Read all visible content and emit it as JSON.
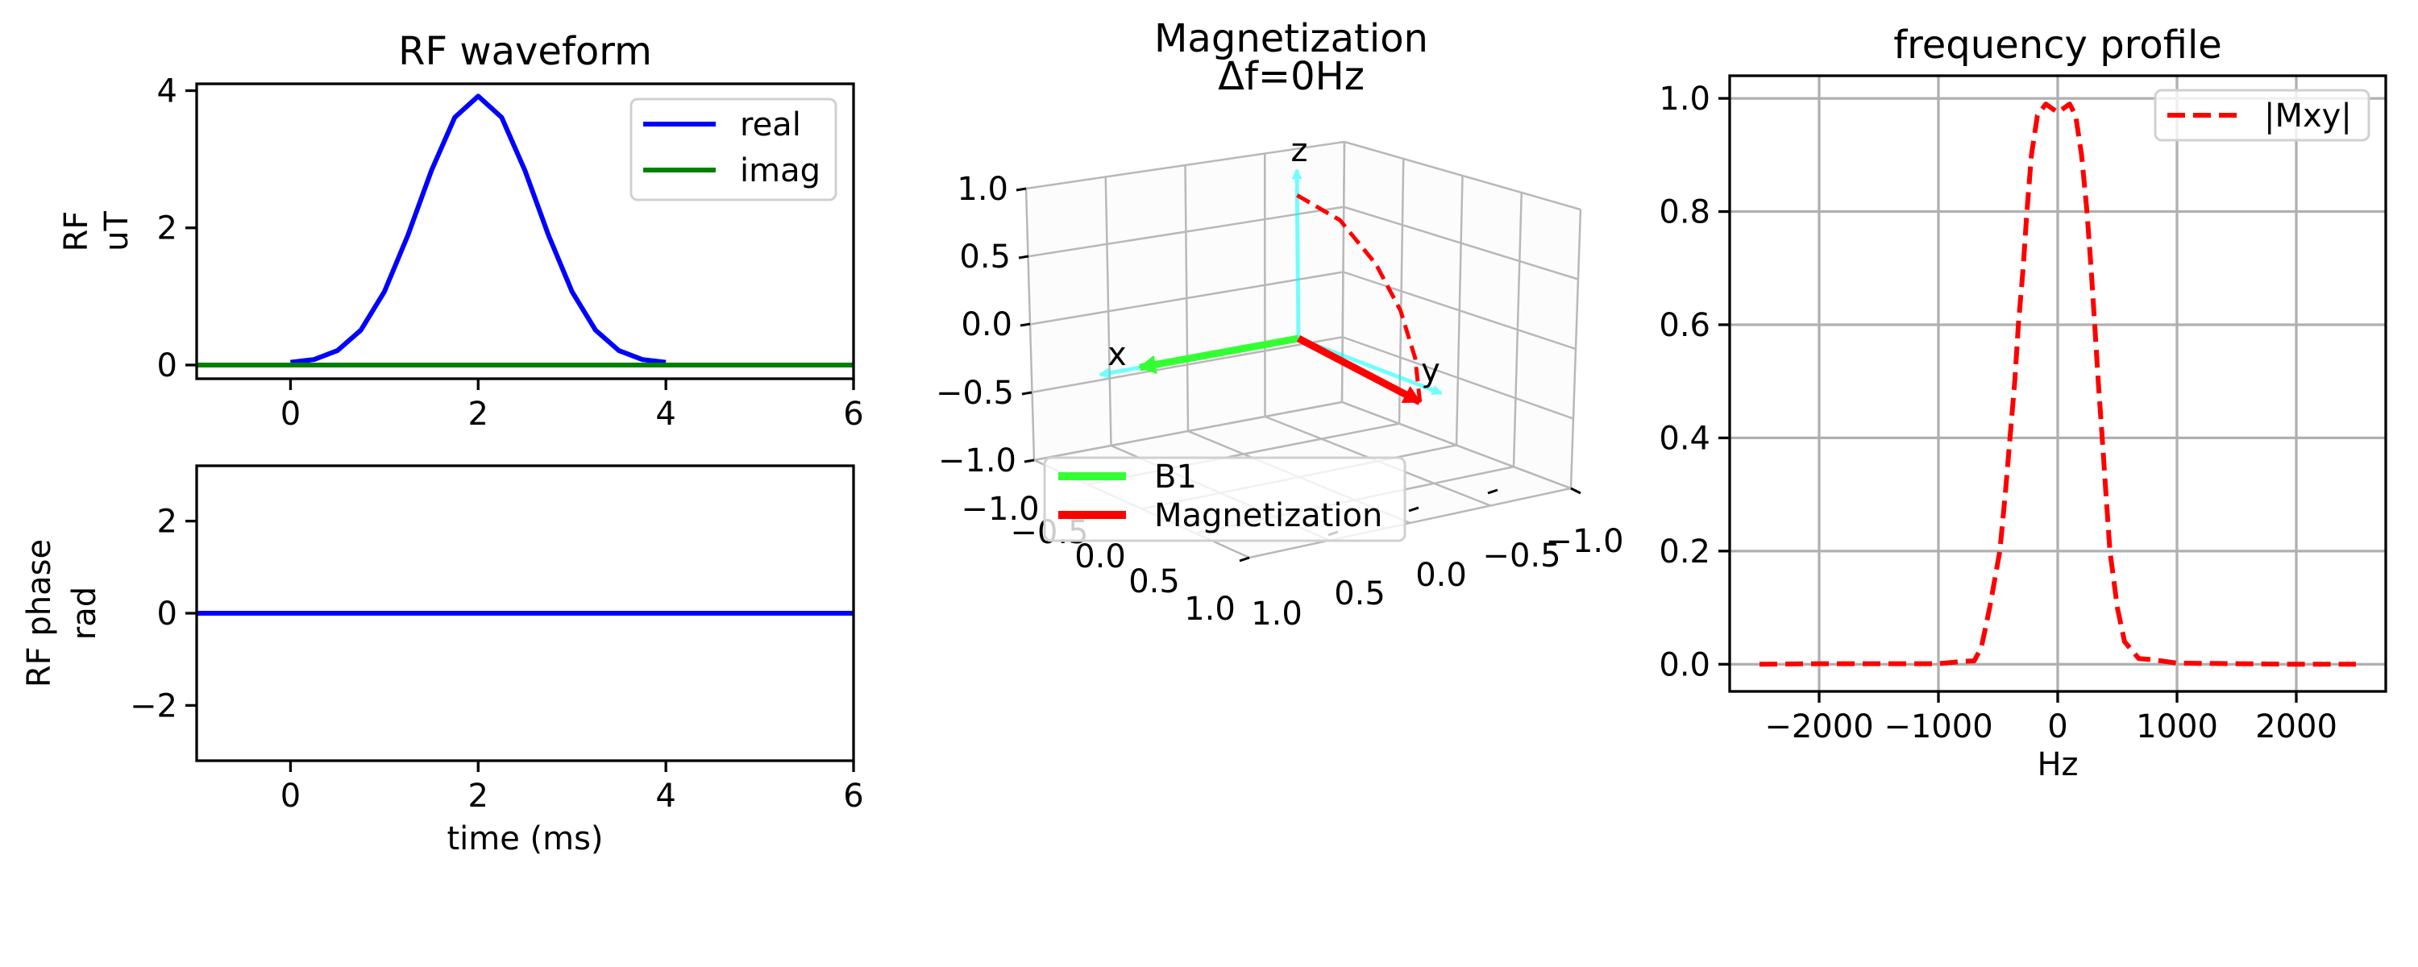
{
  "chart_data": [
    {
      "type": "line",
      "title": "RF waveform",
      "ylabel": [
        "RF",
        "uT"
      ],
      "xlabel": "",
      "xlim": [
        -1,
        6
      ],
      "ylim": [
        -0.2,
        4.1
      ],
      "xticks": {
        "values": [
          0,
          2,
          4,
          6
        ],
        "labels": [
          "0",
          "2",
          "4",
          "6"
        ]
      },
      "yticks": {
        "values": [
          0,
          2,
          4
        ],
        "labels": [
          "0",
          "2",
          "4"
        ]
      },
      "grid": false,
      "legend": "upper right",
      "series": [
        {
          "name": "real",
          "color": "#0000ff",
          "x": [
            0,
            0.25,
            0.5,
            0.75,
            1.0,
            1.25,
            1.5,
            1.75,
            2.0,
            2.25,
            2.5,
            2.75,
            3.0,
            3.25,
            3.5,
            3.75,
            4.0
          ],
          "y": [
            0.04,
            0.08,
            0.21,
            0.51,
            1.07,
            1.89,
            2.83,
            3.61,
            3.92,
            3.61,
            2.83,
            1.89,
            1.07,
            0.51,
            0.21,
            0.08,
            0.04
          ]
        },
        {
          "name": "imag",
          "color": "#008000",
          "x": [
            -1,
            6
          ],
          "y": [
            0,
            0
          ]
        }
      ]
    },
    {
      "type": "line",
      "title": "",
      "ylabel": [
        "RF phase",
        "rad"
      ],
      "xlabel": "time (ms)",
      "xlim": [
        -1,
        6
      ],
      "ylim": [
        -3.2,
        3.2
      ],
      "xticks": {
        "values": [
          0,
          2,
          4,
          6
        ],
        "labels": [
          "0",
          "2",
          "4",
          "6"
        ]
      },
      "yticks": {
        "values": [
          -2,
          0,
          2
        ],
        "labels": [
          "−2",
          "0",
          "2"
        ]
      },
      "grid": false,
      "series": [
        {
          "color": "#0000ff",
          "x": [
            -1,
            6
          ],
          "y": [
            0,
            0
          ]
        }
      ]
    },
    {
      "type": "3d-quiver",
      "title": [
        "Magnetization",
        "Δf=0Hz"
      ],
      "axis_names": {
        "x": "x",
        "y": "y",
        "z": "z"
      },
      "zticks": [
        "1.0",
        "0.5",
        "0.0",
        "−0.5",
        "−1.0"
      ],
      "xticks": [
        "−1.0",
        "−0.5",
        "0.0",
        "0.5",
        "1.0"
      ],
      "yticks": [
        "1.0",
        "0.5",
        "0.0",
        "−0.5",
        "−1.0"
      ],
      "axis_color": "#00ffff",
      "legend": "lower left",
      "vectors": [
        {
          "name": "B1",
          "color": "#33ff33",
          "end": [
            0.8,
            0,
            0
          ]
        },
        {
          "name": "Magnetization",
          "color": "#ff0000",
          "end": [
            0,
            0.85,
            -0.1
          ]
        }
      ],
      "trajectory": {
        "color": "#ff0000",
        "style": "dashed",
        "points": [
          [
            0,
            0,
            0.85
          ],
          [
            0,
            0.3,
            0.8
          ],
          [
            0,
            0.55,
            0.62
          ],
          [
            0,
            0.72,
            0.4
          ],
          [
            0,
            0.82,
            0.15
          ],
          [
            0,
            0.85,
            -0.1
          ]
        ]
      }
    },
    {
      "type": "line",
      "title": "frequency profile",
      "xlabel": "Hz",
      "ylabel": "",
      "xlim": [
        -2750,
        2750
      ],
      "ylim": [
        -0.048,
        1.04
      ],
      "xticks": {
        "values": [
          -2000,
          -1000,
          0,
          1000,
          2000
        ],
        "labels": [
          "−2000",
          "−1000",
          "0",
          "1000",
          "2000"
        ]
      },
      "yticks": {
        "values": [
          0,
          0.2,
          0.4,
          0.6,
          0.8,
          1.0
        ],
        "labels": [
          "0.0",
          "0.2",
          "0.4",
          "0.6",
          "0.8",
          "1.0"
        ]
      },
      "grid": true,
      "legend": "upper right",
      "series": [
        {
          "name": "|Mxy|",
          "color": "#ff0000",
          "style": "dashed",
          "x": [
            -2500,
            -2000,
            -1500,
            -1000,
            -800,
            -700,
            -640,
            -570,
            -485,
            -440,
            -400,
            -360,
            -330,
            -290,
            -258,
            -220,
            -170,
            -100,
            0,
            100,
            150,
            200,
            245,
            280,
            310,
            340,
            373,
            405,
            438,
            500,
            560,
            680,
            800,
            1000,
            1500,
            2000,
            2500
          ],
          "y": [
            0,
            0.001,
            0.001,
            0.001,
            0.005,
            0.006,
            0.03,
            0.1,
            0.2,
            0.3,
            0.4,
            0.5,
            0.6,
            0.7,
            0.8,
            0.9,
            0.97,
            0.99,
            0.975,
            0.99,
            0.97,
            0.9,
            0.8,
            0.7,
            0.6,
            0.5,
            0.4,
            0.3,
            0.2,
            0.1,
            0.04,
            0.01,
            0.008,
            0.002,
            0.001,
            0,
            0
          ]
        }
      ]
    }
  ]
}
